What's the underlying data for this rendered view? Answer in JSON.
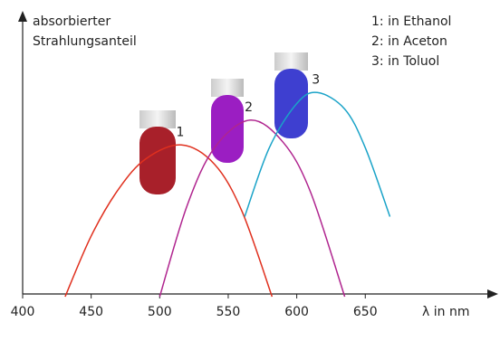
{
  "chart_data": {
    "type": "line",
    "y_label": [
      "absorbierter",
      "Strahlungsanteil"
    ],
    "x_label": "λ in nm",
    "legend": [
      "1: in Ethanol",
      "2: in Aceton",
      "3: in Toluol"
    ],
    "xlim": [
      400,
      745
    ],
    "ylim": [
      0,
      1
    ],
    "xticks": [
      400,
      450,
      500,
      550,
      600,
      650
    ],
    "series": [
      {
        "name": "1",
        "color": "#e0301e",
        "x": [
          431,
          450,
          470,
          490,
          516,
          540,
          560,
          582
        ],
        "values": [
          0,
          0.22,
          0.39,
          0.5,
          0.55,
          0.48,
          0.31,
          0
        ]
      },
      {
        "name": "2",
        "color": "#b0258f",
        "x": [
          500,
          520,
          540,
          566,
          590,
          610,
          635
        ],
        "values": [
          0,
          0.33,
          0.54,
          0.64,
          0.56,
          0.38,
          0
        ]
      },
      {
        "name": "3",
        "color": "#1aa3c8",
        "x": [
          562,
          580,
          600,
          615,
          635,
          650,
          668
        ],
        "values": [
          0.29,
          0.54,
          0.7,
          0.74,
          0.68,
          0.54,
          0.29
        ]
      }
    ]
  }
}
